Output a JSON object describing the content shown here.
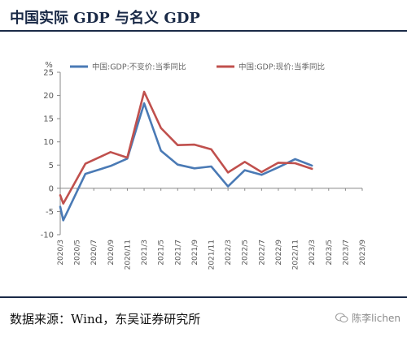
{
  "header": {
    "title": "中国实际 GDP 与名义 GDP"
  },
  "footer": {
    "source": "数据来源：Wind，东吴证券研究所",
    "watermark": "陈李lichen"
  },
  "chart_data": {
    "type": "line",
    "y_unit": "%",
    "ylim": [
      -10,
      25
    ],
    "yticks": [
      -10,
      -5,
      0,
      5,
      10,
      15,
      20,
      25
    ],
    "x": [
      "2020/3",
      "2020/5",
      "2020/7",
      "2020/9",
      "2020/11",
      "2021/3",
      "2021/5",
      "2021/7",
      "2021/9",
      "2021/11",
      "2022/3",
      "2022/5",
      "2022/7",
      "2022/9",
      "2022/11",
      "2023/3",
      "2023/5",
      "2023/7",
      "2023/9"
    ],
    "legend_position": "top",
    "grid": false,
    "series": [
      {
        "name": "中国:GDP:不变价:当季同比",
        "color": "#4a7ab5",
        "points": [
          [
            0,
            -4
          ],
          [
            0.18,
            -6.9
          ],
          [
            1.5,
            3.1
          ],
          [
            3,
            4.8
          ],
          [
            4,
            6.4
          ],
          [
            5,
            18.3
          ],
          [
            6,
            8.1
          ],
          [
            7,
            5.1
          ],
          [
            8,
            4.3
          ],
          [
            9,
            4.7
          ],
          [
            10,
            0.4
          ],
          [
            11,
            3.9
          ],
          [
            12,
            2.9
          ],
          [
            13,
            4.5
          ],
          [
            14,
            6.3
          ],
          [
            15,
            4.9
          ]
        ]
      },
      {
        "name": "中国:GDP:现价:当季同比",
        "color": "#c0504d",
        "points": [
          [
            0,
            -1.5
          ],
          [
            0.18,
            -3.3
          ],
          [
            1.5,
            5.3
          ],
          [
            3,
            7.8
          ],
          [
            4,
            6.6
          ],
          [
            5,
            20.8
          ],
          [
            6,
            13
          ],
          [
            7,
            9.3
          ],
          [
            8,
            9.4
          ],
          [
            9,
            8.4
          ],
          [
            10,
            3.4
          ],
          [
            11,
            5.7
          ],
          [
            12,
            3.5
          ],
          [
            13,
            5.5
          ],
          [
            14,
            5.4
          ],
          [
            15,
            4.2
          ]
        ]
      }
    ]
  }
}
